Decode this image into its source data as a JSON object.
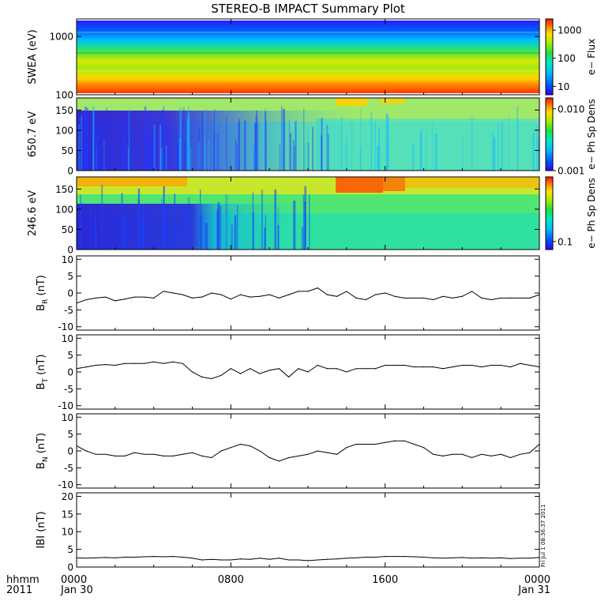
{
  "title": "STEREO-B IMPACT Summary Plot",
  "stamp": "Fri Jul 1 08:36:37 2011",
  "x_axis": {
    "row1_label": "hhmm",
    "row2_label": "2011",
    "ticks": [
      "0000",
      "0800",
      "1600",
      "0000"
    ],
    "dates": [
      "Jan 30",
      "",
      "",
      "Jan 31"
    ]
  },
  "chart_data": [
    {
      "type": "heatmap",
      "ylabel": "SWEA (eV)",
      "ylim": [
        100,
        2000
      ],
      "yscale": "log",
      "yticks": [
        {
          "v": 100,
          "label": "100"
        },
        {
          "v": 1000,
          "label": "1000"
        }
      ],
      "colorbar_label": "e− Flux",
      "colorbar_scale": "log",
      "colorbar_range": [
        5,
        2500
      ],
      "colorbar_ticks": [
        {
          "v": 10,
          "label": "10"
        },
        {
          "v": 100,
          "label": "100"
        },
        {
          "v": 1000,
          "label": "1000"
        }
      ],
      "grid": false
    },
    {
      "type": "heatmap",
      "ylabel": "650.7 eV",
      "ylim": [
        0,
        180
      ],
      "yticks": [
        {
          "v": 0,
          "label": "0"
        },
        {
          "v": 50,
          "label": "50"
        },
        {
          "v": 100,
          "label": "100"
        },
        {
          "v": 150,
          "label": "150"
        }
      ],
      "colorbar_label": "e− Ph Sp Dens",
      "colorbar_scale": "log",
      "colorbar_range": [
        0.001,
        0.015
      ],
      "colorbar_ticks": [
        {
          "v": 0.001,
          "label": "0.001"
        },
        {
          "v": 0.01,
          "label": "0.010"
        }
      ],
      "grid": false
    },
    {
      "type": "heatmap",
      "ylabel": "246.6 eV",
      "ylim": [
        0,
        180
      ],
      "yticks": [
        {
          "v": 0,
          "label": "0"
        },
        {
          "v": 50,
          "label": "50"
        },
        {
          "v": 100,
          "label": "100"
        },
        {
          "v": 150,
          "label": "150"
        }
      ],
      "colorbar_label": "e− Ph Sp Dens",
      "colorbar_scale": "log",
      "colorbar_range": [
        0.075,
        1.0
      ],
      "colorbar_ticks": [
        {
          "v": 0.1,
          "label": "0.1"
        }
      ],
      "grid": false
    },
    {
      "type": "line",
      "ylabel": "B_R (nT)",
      "ylabel_main": "B",
      "ylabel_sub": "R",
      "ylabel_unit": "(nT)",
      "ylim": [
        -11,
        11
      ],
      "yticks": [
        -10,
        -5,
        0,
        5,
        10
      ],
      "x_hours": [
        0,
        0.5,
        1,
        1.5,
        2,
        2.5,
        3,
        3.5,
        4,
        4.5,
        5,
        5.5,
        6,
        6.5,
        7,
        7.5,
        8,
        8.5,
        9,
        9.5,
        10,
        10.5,
        11,
        11.5,
        12,
        12.5,
        13,
        13.5,
        14,
        14.5,
        15,
        15.5,
        16,
        16.5,
        17,
        17.5,
        18,
        18.5,
        19,
        19.5,
        20,
        20.5,
        21,
        21.5,
        22,
        22.5,
        23,
        23.5,
        24
      ],
      "values": [
        -3,
        -2,
        -1.5,
        -1.2,
        -2.3,
        -1.8,
        -1.2,
        -1.2,
        -1.5,
        0.5,
        0,
        -0.5,
        -1.5,
        -1.2,
        0,
        -0.5,
        -1.8,
        -0.5,
        -1.2,
        -1,
        -0.5,
        -1.5,
        -0.5,
        0.5,
        0.5,
        1.5,
        -0.5,
        -1,
        0.5,
        -1.5,
        -2,
        -0.5,
        0,
        -1,
        -1.5,
        -1.5,
        -1.5,
        -2,
        -1,
        -1.5,
        -1,
        0.5,
        -1.5,
        -2,
        -1.5,
        -1.5,
        -1.5,
        -1.5,
        -0.5
      ],
      "grid": false
    },
    {
      "type": "line",
      "ylabel": "B_T (nT)",
      "ylabel_main": "B",
      "ylabel_sub": "T",
      "ylabel_unit": "(nT)",
      "ylim": [
        -11,
        11
      ],
      "yticks": [
        -10,
        -5,
        0,
        5,
        10
      ],
      "x_hours": [
        0,
        0.5,
        1,
        1.5,
        2,
        2.5,
        3,
        3.5,
        4,
        4.5,
        5,
        5.5,
        6,
        6.5,
        7,
        7.5,
        8,
        8.5,
        9,
        9.5,
        10,
        10.5,
        11,
        11.5,
        12,
        12.5,
        13,
        13.5,
        14,
        14.5,
        15,
        15.5,
        16,
        16.5,
        17,
        17.5,
        18,
        18.5,
        19,
        19.5,
        20,
        20.5,
        21,
        21.5,
        22,
        22.5,
        23,
        23.5,
        24
      ],
      "values": [
        1,
        1.5,
        2,
        2.2,
        2,
        2.5,
        2.5,
        2.5,
        3,
        2.5,
        3,
        2.5,
        0,
        -1.5,
        -2,
        -1,
        1,
        -0.5,
        1,
        -0.5,
        0.5,
        1,
        -1.5,
        1,
        0,
        2,
        1,
        1,
        0,
        1,
        1,
        1,
        2,
        2,
        2,
        1.5,
        1.5,
        1.5,
        1,
        1.5,
        2,
        2,
        1.5,
        2,
        2,
        1.5,
        2.5,
        2,
        1.5
      ],
      "grid": false
    },
    {
      "type": "line",
      "ylabel": "B_N (nT)",
      "ylabel_main": "B",
      "ylabel_sub": "N",
      "ylabel_unit": "(nT)",
      "ylim": [
        -11,
        11
      ],
      "yticks": [
        -10,
        -5,
        0,
        5,
        10
      ],
      "x_hours": [
        0,
        0.5,
        1,
        1.5,
        2,
        2.5,
        3,
        3.5,
        4,
        4.5,
        5,
        5.5,
        6,
        6.5,
        7,
        7.5,
        8,
        8.5,
        9,
        9.5,
        10,
        10.5,
        11,
        11.5,
        12,
        12.5,
        13,
        13.5,
        14,
        14.5,
        15,
        15.5,
        16,
        16.5,
        17,
        17.5,
        18,
        18.5,
        19,
        19.5,
        20,
        20.5,
        21,
        21.5,
        22,
        22.5,
        23,
        23.5,
        24
      ],
      "values": [
        1.5,
        0,
        -1,
        -1,
        -1.5,
        -1.5,
        -0.5,
        -1,
        -1,
        -1.5,
        -1.5,
        -1,
        -0.5,
        -1.5,
        -2,
        0,
        1,
        2,
        1.5,
        0,
        -2,
        -3,
        -2,
        -1.5,
        -1,
        0,
        -0.5,
        -1,
        1,
        2,
        2,
        2,
        2.5,
        3,
        3,
        2,
        1,
        -1,
        -1.5,
        -1,
        -1,
        -2,
        -1,
        -1.5,
        -1,
        -2,
        -1,
        -0.5,
        2
      ],
      "grid": false
    },
    {
      "type": "line",
      "ylabel": "|B| (nT)",
      "ylabel_main": "IBI",
      "ylabel_sub": "",
      "ylabel_unit": "(nT)",
      "ylim": [
        0,
        21
      ],
      "yticks": [
        0,
        5,
        10,
        15,
        20
      ],
      "x_hours": [
        0,
        0.5,
        1,
        1.5,
        2,
        2.5,
        3,
        3.5,
        4,
        4.5,
        5,
        5.5,
        6,
        6.5,
        7,
        7.5,
        8,
        8.5,
        9,
        9.5,
        10,
        10.5,
        11,
        11.5,
        12,
        12.5,
        13,
        13.5,
        14,
        14.5,
        15,
        15.5,
        16,
        16.5,
        17,
        17.5,
        18,
        18.5,
        19,
        19.5,
        20,
        20.5,
        21,
        21.5,
        22,
        22.5,
        23,
        23.5,
        24
      ],
      "values": [
        2.6,
        2.5,
        2.6,
        2.7,
        2.6,
        2.8,
        2.8,
        2.9,
        3,
        2.9,
        3,
        2.8,
        2.5,
        2,
        2.2,
        2,
        2,
        2.3,
        2.2,
        2.5,
        2.2,
        2.5,
        2,
        2,
        1.8,
        2,
        2.2,
        2.3,
        2.5,
        2.6,
        2.8,
        2.8,
        3,
        3,
        3,
        2.9,
        2.8,
        2.6,
        2.5,
        2.6,
        2.7,
        2.5,
        2.6,
        2.5,
        2.6,
        2.4,
        2.5,
        2.5,
        2.7
      ],
      "grid": false
    }
  ]
}
